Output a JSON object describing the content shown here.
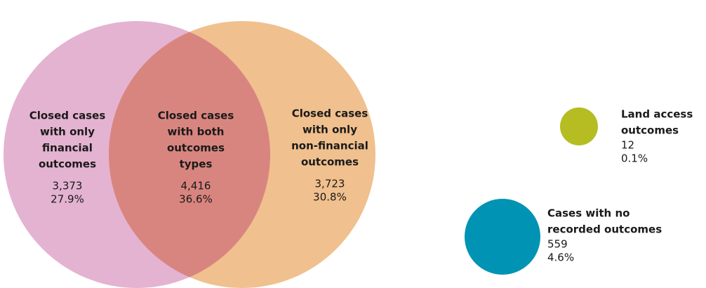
{
  "regions": [
    {
      "label": [
        "Closed cases",
        "with only",
        "financial",
        "outcomes"
      ],
      "count": "3,373",
      "percent": "27.9%"
    },
    {
      "label": [
        "Closed cases",
        "with both",
        "outcomes",
        "types"
      ],
      "count": "4,416",
      "percent": "36.6%"
    },
    {
      "label": [
        "Closed cases",
        "with only",
        "non-financial",
        "outcomes"
      ],
      "count": "3,723",
      "percent": "30.8%"
    }
  ],
  "others": [
    {
      "label": [
        "Land access",
        "outcomes"
      ],
      "count": "12",
      "percent": "0.1%"
    },
    {
      "label": [
        "Cases with no",
        "recorded outcomes"
      ],
      "count": "559",
      "percent": "4.6%"
    }
  ]
}
